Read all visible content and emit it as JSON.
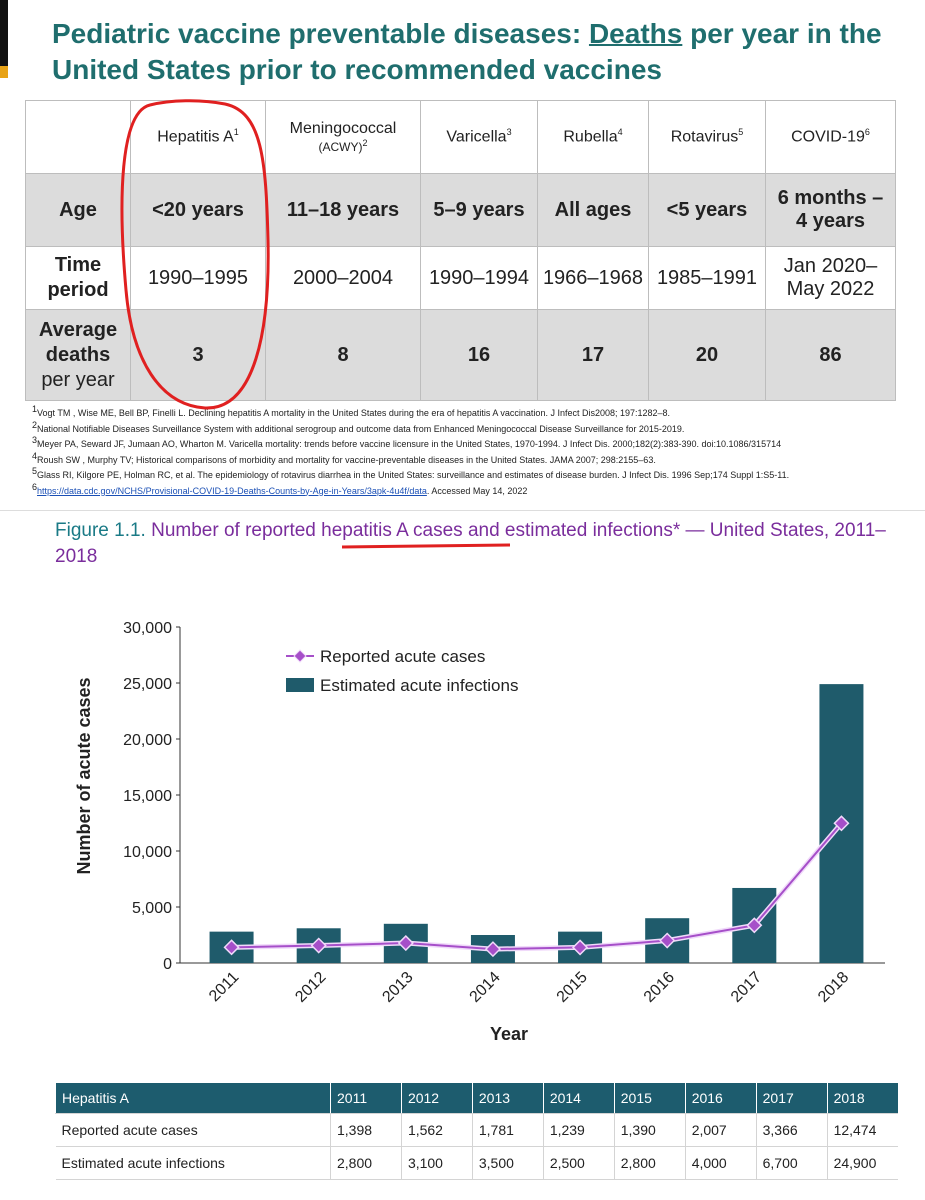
{
  "slide": {
    "title": {
      "before": "Pediatric vaccine preventable diseases: ",
      "underlined": "Deaths",
      "after": " per year in the United States prior to recommended vaccines"
    },
    "table": {
      "columns": [
        {
          "name": "Hepatitis A",
          "note": "1"
        },
        {
          "name": "Meningococcal",
          "sub": "(ACWY)",
          "note": "2"
        },
        {
          "name": "Varicella",
          "note": "3"
        },
        {
          "name": "Rubella",
          "note": "4"
        },
        {
          "name": "Rotavirus",
          "note": "5"
        },
        {
          "name": "COVID-19",
          "note": "6"
        }
      ],
      "rows": [
        {
          "label": "Age",
          "cells": [
            "<20 years",
            "11–18 years",
            "5–9 years",
            "All ages",
            "<5 years",
            "6 months – 4 years"
          ]
        },
        {
          "label": "Time period",
          "cells": [
            "1990–1995",
            "2000–2004",
            "1990–1994",
            "1966–1968",
            "1985–1991",
            "Jan 2020–May 2022"
          ]
        },
        {
          "label": "Average deaths",
          "label_extra": "per year",
          "cells": [
            3,
            8,
            16,
            17,
            20,
            86
          ]
        }
      ]
    },
    "footnotes": [
      {
        "mark": "1",
        "text": "Vogt TM , Wise ME, Bell BP, Finelli L. Declining hepatitis A mortality in the United States during the era of hepatitis A vaccination. J Infect Dis2008; 197:1282–8."
      },
      {
        "mark": "2",
        "text": "National Notifiable Diseases Surveillance System with additional serogroup and outcome data from Enhanced Meningococcal Disease Surveillance for 2015-2019."
      },
      {
        "mark": "3",
        "text": "Meyer PA, Seward JF, Jumaan AO, Wharton M. Varicella mortality: trends before vaccine licensure in the United States, 1970-1994. J Infect Dis. 2000;182(2):383-390. doi:10.1086/315714"
      },
      {
        "mark": "4",
        "text": "Roush SW , Murphy TV; Historical comparisons of morbidity and mortality for vaccine-preventable diseases in the United States. JAMA 2007; 298:2155–63."
      },
      {
        "mark": "5",
        "text": "Glass RI, Kilgore PE, Holman RC, et al. The epidemiology of rotavirus diarrhea in the United States: surveillance and estimates of disease burden. J Infect Dis. 1996 Sep;174 Suppl 1:S5-11."
      },
      {
        "mark": "6",
        "link": "https://data.cdc.gov/NCHS/Provisional-COVID-19-Deaths-Counts-by-Age-in-Years/3apk-4u4f/data",
        "text": ". Accessed May 14, 2022"
      }
    ]
  },
  "chart_data": {
    "type": "bar",
    "figure_label": "Figure 1.1.",
    "title": "Number of reported hepatitis A cases and estimated infections* — United States, 2011–2018",
    "x_label": "Year",
    "y_label": "Number of acute cases",
    "categories": [
      "2011",
      "2012",
      "2013",
      "2014",
      "2015",
      "2016",
      "2017",
      "2018"
    ],
    "series": [
      {
        "name": "Reported acute cases",
        "type": "line",
        "color": "#a64fc9",
        "values": [
          1398,
          1562,
          1781,
          1239,
          1390,
          2007,
          3366,
          12474
        ]
      },
      {
        "name": "Estimated acute infections",
        "type": "bar",
        "color": "#1f5b6b",
        "values": [
          2800,
          3100,
          3500,
          2500,
          2800,
          4000,
          6700,
          24900
        ]
      }
    ],
    "ylim": [
      0,
      30000
    ],
    "yticks": [
      0,
      {
        "value": 5000,
        "label": "5,000"
      },
      {
        "value": 10000,
        "label": "10,000"
      },
      {
        "value": 15000,
        "label": "15,000"
      },
      {
        "value": 20000,
        "label": "20,000"
      },
      {
        "value": 25000,
        "label": "25,000"
      },
      {
        "value": 30000,
        "label": "30,000"
      }
    ],
    "legend": "top-left"
  },
  "data_table": {
    "header": [
      "Hepatitis A",
      "2011",
      "2012",
      "2013",
      "2014",
      "2015",
      "2016",
      "2017",
      "2018"
    ],
    "rows": [
      [
        "Reported acute cases",
        "1,398",
        "1,562",
        "1,781",
        "1,239",
        "1,390",
        "2,007",
        "3,366",
        "12,474"
      ],
      [
        "Estimated acute infections",
        "2,800",
        "3,100",
        "3,500",
        "2,500",
        "2,800",
        "4,000",
        "6,700",
        "24,900"
      ]
    ]
  }
}
